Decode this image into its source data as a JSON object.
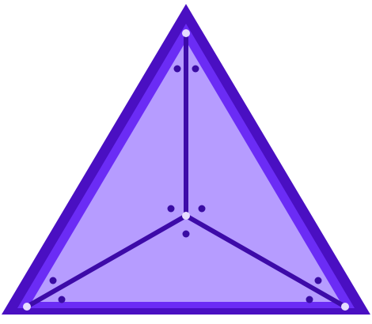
{
  "diagram": {
    "shape": "tetrahedron-top-view",
    "colors": {
      "outer_edge": "#4a0fc2",
      "edge_highlight": "#6b2cf5",
      "face_fill": "#b69cff",
      "inner_edge": "#3d0ba8",
      "vertex_dot": "#e6dcff",
      "marker_dot": "#3a0ca3",
      "background": "#ffffff"
    },
    "vertices": [
      {
        "id": "apex"
      },
      {
        "id": "bottom-left"
      },
      {
        "id": "bottom-right"
      },
      {
        "id": "center"
      }
    ],
    "edges": [
      {
        "from": "apex",
        "to": "center"
      },
      {
        "from": "bottom-left",
        "to": "center"
      },
      {
        "from": "bottom-right",
        "to": "center"
      }
    ]
  }
}
